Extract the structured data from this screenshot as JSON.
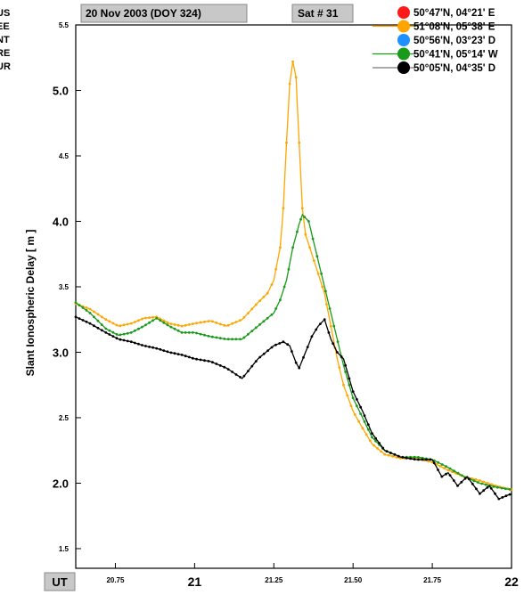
{
  "header": {
    "date_label": "20 Nov 2003 (DOY 324)",
    "sat_label": "Sat # 31"
  },
  "stations": [
    "US",
    "EE",
    "NT",
    "RE",
    "UR"
  ],
  "colors": {
    "red": "#ff1a1a",
    "orange": "#ffa500",
    "blue": "#1e90ff",
    "green": "#1a9a1a",
    "black": "#000000",
    "header_box": "#c8c8c8"
  },
  "chart_data": {
    "type": "line",
    "title": "",
    "xlabel": "UT",
    "ylabel": "Slant Ionospheric Delay [ m ]",
    "xlim": [
      20.625,
      22
    ],
    "ylim": [
      1.35,
      5.5
    ],
    "x_ticks": [
      {
        "value": 20.75,
        "label": "20.75",
        "major": false
      },
      {
        "value": 21,
        "label": "21",
        "major": true
      },
      {
        "value": 21.25,
        "label": "21.25",
        "major": false
      },
      {
        "value": 21.5,
        "label": "21.50",
        "major": false
      },
      {
        "value": 21.75,
        "label": "21.75",
        "major": false
      },
      {
        "value": 22,
        "label": "22",
        "major": true
      }
    ],
    "y_ticks": [
      {
        "value": 1.5,
        "label": "1.5",
        "major": false
      },
      {
        "value": 2.0,
        "label": "2.0",
        "major": true
      },
      {
        "value": 2.5,
        "label": "2.5",
        "major": false
      },
      {
        "value": 3.0,
        "label": "3.0",
        "major": true
      },
      {
        "value": 3.5,
        "label": "3.5",
        "major": false
      },
      {
        "value": 4.0,
        "label": "4.0",
        "major": true
      },
      {
        "value": 4.5,
        "label": "4.5",
        "major": false
      },
      {
        "value": 5.0,
        "label": "5.0",
        "major": true
      },
      {
        "value": 5.5,
        "label": "5.5",
        "major": false
      }
    ],
    "grid": false,
    "legend_position": "top-right",
    "series": [
      {
        "name": "50°47'N, 04°21' E",
        "color": "#ff1a1a",
        "x": [],
        "y": []
      },
      {
        "name": "51°08'N, 05°38' E",
        "color": "#ffa500",
        "x": [
          20.625,
          20.67,
          20.72,
          20.76,
          20.8,
          20.84,
          20.88,
          20.92,
          20.96,
          21.0,
          21.05,
          21.1,
          21.15,
          21.2,
          21.23,
          21.25,
          21.27,
          21.28,
          21.29,
          21.3,
          21.31,
          21.32,
          21.33,
          21.34,
          21.35,
          21.37,
          21.39,
          21.41,
          21.43,
          21.45,
          21.47,
          21.5,
          21.53,
          21.56,
          21.6,
          21.65,
          21.7,
          21.75,
          21.8,
          21.85,
          21.9,
          21.95,
          22.0
        ],
        "y": [
          3.37,
          3.33,
          3.25,
          3.2,
          3.22,
          3.26,
          3.27,
          3.22,
          3.2,
          3.22,
          3.24,
          3.2,
          3.25,
          3.38,
          3.45,
          3.55,
          3.8,
          4.1,
          4.6,
          5.05,
          5.22,
          5.1,
          4.6,
          4.1,
          3.9,
          3.75,
          3.6,
          3.45,
          3.2,
          2.95,
          2.75,
          2.55,
          2.42,
          2.3,
          2.22,
          2.19,
          2.19,
          2.16,
          2.1,
          2.05,
          2.02,
          1.98,
          1.95
        ]
      },
      {
        "name": "50°56'N, 03°23' D",
        "color": "#1e90ff",
        "x": [],
        "y": []
      },
      {
        "name": "50°41'N, 05°14' W",
        "color": "#1a9a1a",
        "x": [
          20.625,
          20.67,
          20.72,
          20.76,
          20.8,
          20.84,
          20.88,
          20.92,
          20.96,
          21.0,
          21.05,
          21.1,
          21.15,
          21.2,
          21.23,
          21.25,
          21.27,
          21.29,
          21.31,
          21.33,
          21.34,
          21.36,
          21.38,
          21.4,
          21.42,
          21.44,
          21.47,
          21.5,
          21.53,
          21.56,
          21.6,
          21.65,
          21.7,
          21.75,
          21.8,
          21.85,
          21.9,
          21.95,
          22.0
        ],
        "y": [
          3.38,
          3.3,
          3.18,
          3.13,
          3.15,
          3.2,
          3.26,
          3.2,
          3.15,
          3.15,
          3.12,
          3.1,
          3.1,
          3.2,
          3.26,
          3.3,
          3.4,
          3.55,
          3.8,
          3.98,
          4.05,
          4.0,
          3.8,
          3.6,
          3.4,
          3.2,
          2.9,
          2.65,
          2.5,
          2.35,
          2.25,
          2.2,
          2.2,
          2.18,
          2.12,
          2.05,
          2.0,
          1.97,
          1.95
        ]
      },
      {
        "name": "50°05'N, 04°35' D",
        "color": "#000000",
        "x": [
          20.625,
          20.67,
          20.72,
          20.76,
          20.8,
          20.84,
          20.88,
          20.92,
          20.96,
          21.0,
          21.05,
          21.1,
          21.15,
          21.2,
          21.25,
          21.28,
          21.3,
          21.32,
          21.33,
          21.35,
          21.37,
          21.39,
          21.41,
          21.43,
          21.45,
          21.47,
          21.5,
          21.53,
          21.56,
          21.6,
          21.65,
          21.7,
          21.75,
          21.78,
          21.8,
          21.83,
          21.86,
          21.9,
          21.93,
          21.96,
          22.0
        ],
        "y": [
          3.27,
          3.22,
          3.15,
          3.1,
          3.08,
          3.05,
          3.03,
          3.0,
          2.98,
          2.95,
          2.93,
          2.88,
          2.8,
          2.95,
          3.05,
          3.08,
          3.05,
          2.92,
          2.88,
          3.0,
          3.12,
          3.2,
          3.25,
          3.1,
          3.0,
          2.95,
          2.7,
          2.55,
          2.38,
          2.25,
          2.2,
          2.18,
          2.18,
          2.05,
          2.08,
          1.98,
          2.05,
          1.92,
          1.98,
          1.88,
          1.92
        ]
      }
    ]
  }
}
